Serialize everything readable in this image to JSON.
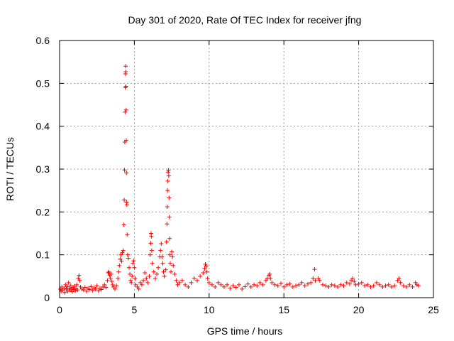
{
  "chart_data": {
    "type": "scatter",
    "title": "Day 301 of 2020, Rate Of TEC Index for receiver jfng",
    "xlabel": "GPS time / hours",
    "ylabel": "ROTI / TECUs",
    "xlim": [
      0,
      25
    ],
    "ylim": [
      0,
      0.6
    ],
    "xticks": [
      0,
      5,
      10,
      15,
      20,
      25
    ],
    "yticks": [
      0,
      0.1,
      0.2,
      0.3,
      0.4,
      0.5,
      0.6
    ],
    "xtick_labels": [
      "0",
      "5",
      "10",
      "15",
      "20",
      "25"
    ],
    "ytick_labels": [
      "0",
      "0.1",
      "0.2",
      "0.3",
      "0.4",
      "0.5",
      "0.6"
    ],
    "grid": true,
    "marker": "+",
    "color": "#ff0000",
    "series": [
      {
        "name": "ROTI",
        "points": [
          [
            0.05,
            0.02
          ],
          [
            0.1,
            0.015
          ],
          [
            0.15,
            0.025
          ],
          [
            0.2,
            0.018
          ],
          [
            0.3,
            0.022
          ],
          [
            0.35,
            0.012
          ],
          [
            0.4,
            0.03
          ],
          [
            0.45,
            0.02
          ],
          [
            0.5,
            0.026
          ],
          [
            0.55,
            0.015
          ],
          [
            0.6,
            0.035
          ],
          [
            0.65,
            0.022
          ],
          [
            0.7,
            0.018
          ],
          [
            0.75,
            0.028
          ],
          [
            0.8,
            0.02
          ],
          [
            0.85,
            0.014
          ],
          [
            0.9,
            0.024
          ],
          [
            0.95,
            0.019
          ],
          [
            1.0,
            0.027
          ],
          [
            1.05,
            0.016
          ],
          [
            1.1,
            0.021
          ],
          [
            1.15,
            0.03
          ],
          [
            1.2,
            0.018
          ],
          [
            1.25,
            0.045
          ],
          [
            1.3,
            0.052
          ],
          [
            1.35,
            0.04
          ],
          [
            1.4,
            0.025
          ],
          [
            1.5,
            0.02
          ],
          [
            1.6,
            0.018
          ],
          [
            1.7,
            0.024
          ],
          [
            1.8,
            0.015
          ],
          [
            1.9,
            0.022
          ],
          [
            2.0,
            0.019
          ],
          [
            2.1,
            0.026
          ],
          [
            2.2,
            0.017
          ],
          [
            2.3,
            0.023
          ],
          [
            2.4,
            0.02
          ],
          [
            2.5,
            0.028
          ],
          [
            2.6,
            0.016
          ],
          [
            2.7,
            0.022
          ],
          [
            2.8,
            0.019
          ],
          [
            2.9,
            0.025
          ],
          [
            3.0,
            0.03
          ],
          [
            3.1,
            0.024
          ],
          [
            3.2,
            0.04
          ],
          [
            3.25,
            0.058
          ],
          [
            3.3,
            0.06
          ],
          [
            3.35,
            0.052
          ],
          [
            3.4,
            0.045
          ],
          [
            3.45,
            0.055
          ],
          [
            3.5,
            0.038
          ],
          [
            3.55,
            0.03
          ],
          [
            3.6,
            0.025
          ],
          [
            3.7,
            0.02
          ],
          [
            3.8,
            0.028
          ],
          [
            3.9,
            0.045
          ],
          [
            3.95,
            0.06
          ],
          [
            4.0,
            0.075
          ],
          [
            4.05,
            0.09
          ],
          [
            4.1,
            0.1
          ],
          [
            4.15,
            0.085
          ],
          [
            4.2,
            0.105
          ],
          [
            4.25,
            0.11
          ],
          [
            4.3,
            0.17
          ],
          [
            4.32,
            0.228
          ],
          [
            4.34,
            0.298
          ],
          [
            4.36,
            0.363
          ],
          [
            4.38,
            0.433
          ],
          [
            4.4,
            0.49
          ],
          [
            4.41,
            0.522
          ],
          [
            4.42,
            0.54
          ],
          [
            4.43,
            0.527
          ],
          [
            4.44,
            0.493
          ],
          [
            4.45,
            0.438
          ],
          [
            4.46,
            0.367
          ],
          [
            4.47,
            0.291
          ],
          [
            4.48,
            0.223
          ],
          [
            4.5,
            0.217
          ],
          [
            4.52,
            0.147
          ],
          [
            4.55,
            0.1
          ],
          [
            4.6,
            0.092
          ],
          [
            4.65,
            0.07
          ],
          [
            4.7,
            0.055
          ],
          [
            4.75,
            0.04
          ],
          [
            4.8,
            0.035
          ],
          [
            4.85,
            0.05
          ],
          [
            4.9,
            0.08
          ],
          [
            4.95,
            0.086
          ],
          [
            5.0,
            0.07
          ],
          [
            5.05,
            0.045
          ],
          [
            5.1,
            0.03
          ],
          [
            5.2,
            0.025
          ],
          [
            5.3,
            0.02
          ],
          [
            5.4,
            0.035
          ],
          [
            5.5,
            0.03
          ],
          [
            5.6,
            0.04
          ],
          [
            5.7,
            0.058
          ],
          [
            5.8,
            0.045
          ],
          [
            5.9,
            0.035
          ],
          [
            6.0,
            0.05
          ],
          [
            6.05,
            0.1
          ],
          [
            6.1,
            0.127
          ],
          [
            6.12,
            0.15
          ],
          [
            6.14,
            0.143
          ],
          [
            6.16,
            0.11
          ],
          [
            6.2,
            0.08
          ],
          [
            6.3,
            0.06
          ],
          [
            6.4,
            0.045
          ],
          [
            6.5,
            0.055
          ],
          [
            6.6,
            0.07
          ],
          [
            6.7,
            0.095
          ],
          [
            6.75,
            0.11
          ],
          [
            6.8,
            0.126
          ],
          [
            6.85,
            0.095
          ],
          [
            6.9,
            0.08
          ],
          [
            6.95,
            0.06
          ],
          [
            7.0,
            0.05
          ],
          [
            7.1,
            0.065
          ],
          [
            7.15,
            0.13
          ],
          [
            7.18,
            0.172
          ],
          [
            7.2,
            0.212
          ],
          [
            7.22,
            0.25
          ],
          [
            7.24,
            0.272
          ],
          [
            7.26,
            0.293
          ],
          [
            7.28,
            0.297
          ],
          [
            7.3,
            0.284
          ],
          [
            7.32,
            0.233
          ],
          [
            7.34,
            0.188
          ],
          [
            7.36,
            0.138
          ],
          [
            7.38,
            0.1
          ],
          [
            7.4,
            0.08
          ],
          [
            7.45,
            0.06
          ],
          [
            7.5,
            0.107
          ],
          [
            7.55,
            0.095
          ],
          [
            7.6,
            0.075
          ],
          [
            7.7,
            0.055
          ],
          [
            7.8,
            0.04
          ],
          [
            7.9,
            0.03
          ],
          [
            8.0,
            0.035
          ],
          [
            8.2,
            0.04
          ],
          [
            8.4,
            0.03
          ],
          [
            8.6,
            0.025
          ],
          [
            8.8,
            0.035
          ],
          [
            9.0,
            0.045
          ],
          [
            9.2,
            0.04
          ],
          [
            9.4,
            0.05
          ],
          [
            9.6,
            0.058
          ],
          [
            9.7,
            0.068
          ],
          [
            9.75,
            0.078
          ],
          [
            9.8,
            0.074
          ],
          [
            9.85,
            0.06
          ],
          [
            9.9,
            0.045
          ],
          [
            10.0,
            0.035
          ],
          [
            10.2,
            0.03
          ],
          [
            10.4,
            0.025
          ],
          [
            10.6,
            0.035
          ],
          [
            10.8,
            0.03
          ],
          [
            11.0,
            0.025
          ],
          [
            11.2,
            0.03
          ],
          [
            11.4,
            0.022
          ],
          [
            11.6,
            0.028
          ],
          [
            11.8,
            0.024
          ],
          [
            12.0,
            0.03
          ],
          [
            12.2,
            0.02
          ],
          [
            12.4,
            0.026
          ],
          [
            12.6,
            0.032
          ],
          [
            12.8,
            0.025
          ],
          [
            13.0,
            0.03
          ],
          [
            13.2,
            0.028
          ],
          [
            13.4,
            0.035
          ],
          [
            13.6,
            0.03
          ],
          [
            13.8,
            0.04
          ],
          [
            13.9,
            0.045
          ],
          [
            14.0,
            0.052
          ],
          [
            14.05,
            0.055
          ],
          [
            14.1,
            0.045
          ],
          [
            14.2,
            0.035
          ],
          [
            14.4,
            0.03
          ],
          [
            14.6,
            0.028
          ],
          [
            14.8,
            0.033
          ],
          [
            15.0,
            0.025
          ],
          [
            15.2,
            0.03
          ],
          [
            15.4,
            0.032
          ],
          [
            15.6,
            0.025
          ],
          [
            15.8,
            0.028
          ],
          [
            16.0,
            0.03
          ],
          [
            16.2,
            0.035
          ],
          [
            16.4,
            0.028
          ],
          [
            16.6,
            0.032
          ],
          [
            16.8,
            0.035
          ],
          [
            16.95,
            0.045
          ],
          [
            17.05,
            0.066
          ],
          [
            17.1,
            0.04
          ],
          [
            17.3,
            0.045
          ],
          [
            17.4,
            0.04
          ],
          [
            17.6,
            0.03
          ],
          [
            17.8,
            0.028
          ],
          [
            18.0,
            0.025
          ],
          [
            18.2,
            0.03
          ],
          [
            18.4,
            0.028
          ],
          [
            18.6,
            0.025
          ],
          [
            18.8,
            0.03
          ],
          [
            19.0,
            0.028
          ],
          [
            19.2,
            0.035
          ],
          [
            19.4,
            0.032
          ],
          [
            19.5,
            0.04
          ],
          [
            19.6,
            0.045
          ],
          [
            19.7,
            0.038
          ],
          [
            19.8,
            0.03
          ],
          [
            20.0,
            0.032
          ],
          [
            20.2,
            0.035
          ],
          [
            20.4,
            0.028
          ],
          [
            20.6,
            0.03
          ],
          [
            20.8,
            0.025
          ],
          [
            21.0,
            0.028
          ],
          [
            21.2,
            0.035
          ],
          [
            21.4,
            0.03
          ],
          [
            21.6,
            0.025
          ],
          [
            21.8,
            0.028
          ],
          [
            22.0,
            0.03
          ],
          [
            22.2,
            0.025
          ],
          [
            22.4,
            0.028
          ],
          [
            22.6,
            0.04
          ],
          [
            22.7,
            0.045
          ],
          [
            22.8,
            0.035
          ],
          [
            23.0,
            0.028
          ],
          [
            23.2,
            0.025
          ],
          [
            23.4,
            0.03
          ],
          [
            23.6,
            0.025
          ],
          [
            23.8,
            0.035
          ],
          [
            23.9,
            0.03
          ],
          [
            24.0,
            0.028
          ]
        ]
      }
    ]
  }
}
